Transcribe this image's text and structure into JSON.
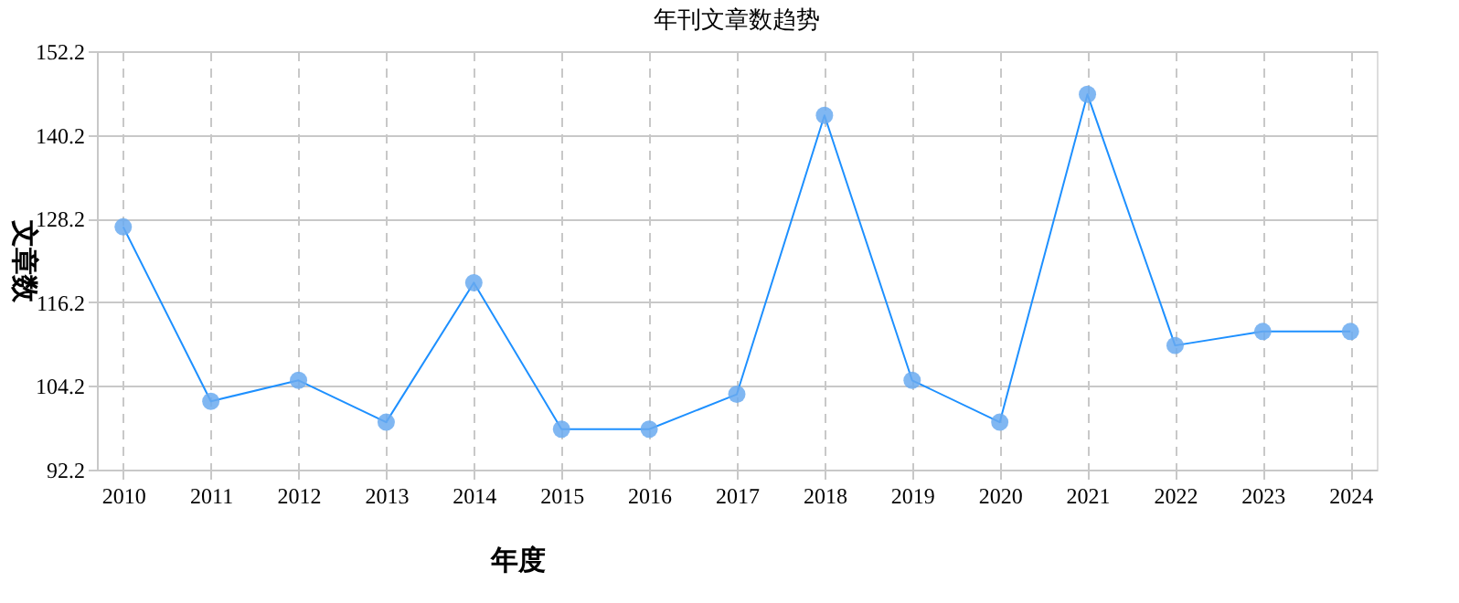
{
  "chart_data": {
    "type": "line",
    "title": "年刊文章数趋势",
    "xlabel": "年度",
    "ylabel": "文章数",
    "categories": [
      "2010",
      "2011",
      "2012",
      "2013",
      "2014",
      "2015",
      "2016",
      "2017",
      "2018",
      "2019",
      "2020",
      "2021",
      "2022",
      "2023",
      "2024"
    ],
    "series": [
      {
        "color": "#1e90ff",
        "values": [
          127,
          102,
          105,
          99,
          119,
          98,
          98,
          103,
          143,
          105,
          99,
          146,
          110,
          112,
          112
        ]
      }
    ],
    "ylim": [
      92.2,
      152.2
    ],
    "yticks": [
      92.2,
      104.2,
      116.2,
      128.2,
      140.2,
      152.2
    ],
    "grid": true,
    "legend": false,
    "marker": "circle",
    "line_style": "solid"
  }
}
